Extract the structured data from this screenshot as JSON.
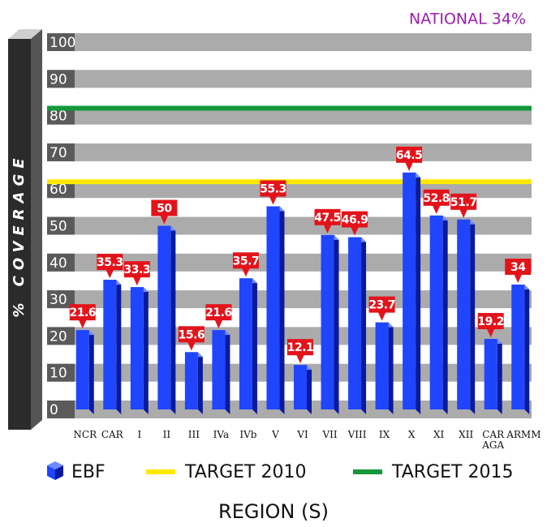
{
  "chart_data": {
    "type": "bar",
    "annotation": "NATIONAL 34%",
    "ylabel": "% COVERAGE",
    "xlabel": "REGION (S)",
    "categories": [
      "NCR",
      "CAR",
      "I",
      "II",
      "III",
      "IVa",
      "IVb",
      "V",
      "VI",
      "VII",
      "VIII",
      "IX",
      "X",
      "XI",
      "XII",
      "CAR AGA",
      "ARMM"
    ],
    "series": [
      {
        "name": "EBF",
        "color": "#1f45ff",
        "values": [
          21.6,
          35.3,
          33.3,
          50,
          15.6,
          21.6,
          35.7,
          55.3,
          12.1,
          47.5,
          46.9,
          23.7,
          64.5,
          52.8,
          51.7,
          19.2,
          34
        ]
      }
    ],
    "target_lines": [
      {
        "name": "TARGET 2010",
        "color": "#ffe800",
        "value": 62
      },
      {
        "name": "TARGET 2015",
        "color": "#15973a",
        "value": 82
      }
    ],
    "ylim": [
      0,
      100
    ],
    "yticks": [
      0,
      10,
      20,
      30,
      40,
      50,
      60,
      70,
      80,
      90,
      100
    ],
    "grid": true
  }
}
